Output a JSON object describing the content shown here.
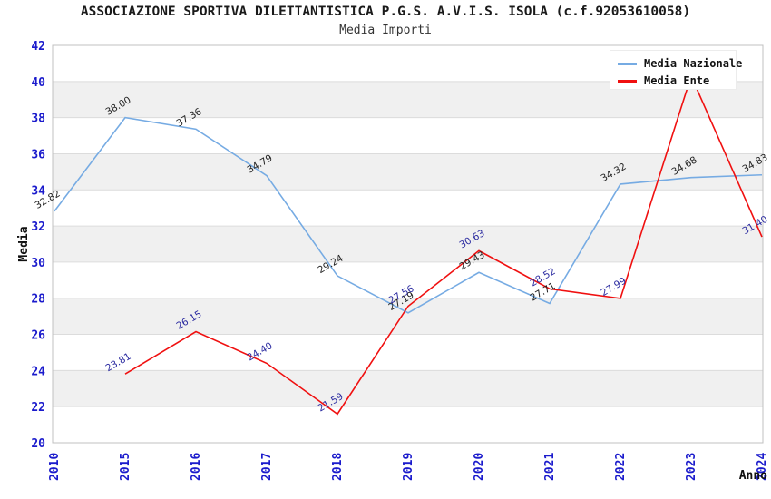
{
  "title": "ASSOCIAZIONE SPORTIVA DILETTANTISTICA P.G.S. A.V.I.S. ISOLA (c.f.92053610058)",
  "subtitle": "Media Importi",
  "legend": {
    "position": "top-right",
    "items": [
      {
        "label": "Media Nazionale",
        "color": "#76abe3"
      },
      {
        "label": "Media Ente",
        "color": "#f01010"
      }
    ]
  },
  "chart_data": {
    "type": "line",
    "x_categories": [
      "2010",
      "2015",
      "2016",
      "2017",
      "2018",
      "2019",
      "2020",
      "2021",
      "2022",
      "2023",
      "2024"
    ],
    "xlabel": "Anno",
    "ylabel": "Media",
    "ylim": [
      20,
      42
    ],
    "ytick_step": 2,
    "grid": "horizontal alternating gray bands every 2 units",
    "series": [
      {
        "name": "Media Nazionale",
        "color": "#76abe3",
        "label_color": "#222222",
        "values": [
          32.82,
          38.0,
          37.36,
          34.79,
          29.24,
          27.19,
          29.43,
          27.71,
          34.32,
          34.68,
          34.83
        ],
        "point_labels": [
          "32.82",
          "38.00",
          "37.36",
          "34.79",
          "29.24",
          "27.19",
          "29.43",
          "27.71",
          "34.32",
          "34.68",
          "34.83"
        ]
      },
      {
        "name": "Media Ente",
        "color": "#f01010",
        "label_color": "#2a2aa0",
        "values": [
          null,
          23.81,
          26.15,
          24.4,
          21.59,
          27.56,
          30.63,
          28.52,
          27.99,
          40.3,
          31.4
        ],
        "point_labels": [
          null,
          "23.81",
          "26.15",
          "24.40",
          "21.59",
          "27.56",
          "30.63",
          "28.52",
          "27.99",
          "",
          "31.40"
        ],
        "note": "2023 peak label hidden behind legend box"
      }
    ]
  },
  "colors": {
    "tick_label": "#1b1bcc",
    "axis_title": "#111111",
    "band_gray": "#f0f0f0",
    "grid_line": "#dcdcdc",
    "plot_border": "#c0c0c0",
    "background": "#ffffff"
  }
}
